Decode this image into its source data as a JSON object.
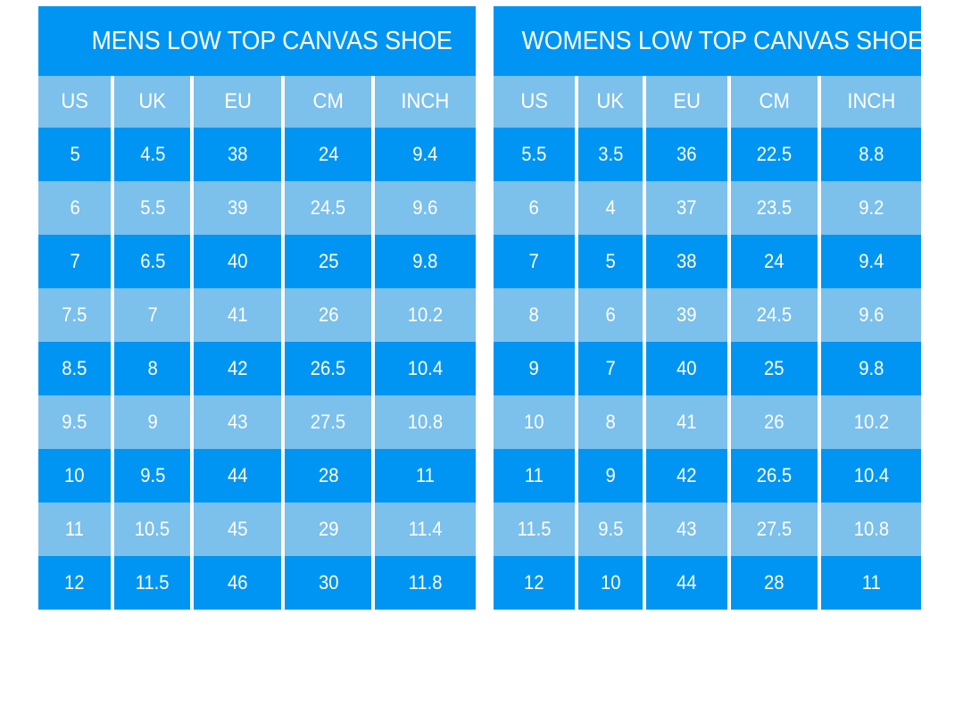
{
  "colors": {
    "row_dark": "#0095F2",
    "row_light": "#7CC0EC",
    "text": "#FFFFFF",
    "background": "#FFFFFF"
  },
  "chart_data": [
    {
      "type": "table",
      "title": "MENS LOW TOP CANVAS SHOE",
      "columns": [
        "US",
        "UK",
        "EU",
        "CM",
        "INCH"
      ],
      "rows": [
        [
          "5",
          "4.5",
          "38",
          "24",
          "9.4"
        ],
        [
          "6",
          "5.5",
          "39",
          "24.5",
          "9.6"
        ],
        [
          "7",
          "6.5",
          "40",
          "25",
          "9.8"
        ],
        [
          "7.5",
          "7",
          "41",
          "26",
          "10.2"
        ],
        [
          "8.5",
          "8",
          "42",
          "26.5",
          "10.4"
        ],
        [
          "9.5",
          "9",
          "43",
          "27.5",
          "10.8"
        ],
        [
          "10",
          "9.5",
          "44",
          "28",
          "11"
        ],
        [
          "11",
          "10.5",
          "45",
          "29",
          "11.4"
        ],
        [
          "12",
          "11.5",
          "46",
          "30",
          "11.8"
        ]
      ]
    },
    {
      "type": "table",
      "title": "WOMENS LOW TOP CANVAS SHOE",
      "columns": [
        "US",
        "UK",
        "EU",
        "CM",
        "INCH"
      ],
      "rows": [
        [
          "5.5",
          "3.5",
          "36",
          "22.5",
          "8.8"
        ],
        [
          "6",
          "4",
          "37",
          "23.5",
          "9.2"
        ],
        [
          "7",
          "5",
          "38",
          "24",
          "9.4"
        ],
        [
          "8",
          "6",
          "39",
          "24.5",
          "9.6"
        ],
        [
          "9",
          "7",
          "40",
          "25",
          "9.8"
        ],
        [
          "10",
          "8",
          "41",
          "26",
          "10.2"
        ],
        [
          "11",
          "9",
          "42",
          "26.5",
          "10.4"
        ],
        [
          "11.5",
          "9.5",
          "43",
          "27.5",
          "10.8"
        ],
        [
          "12",
          "10",
          "44",
          "28",
          "11"
        ]
      ]
    }
  ]
}
